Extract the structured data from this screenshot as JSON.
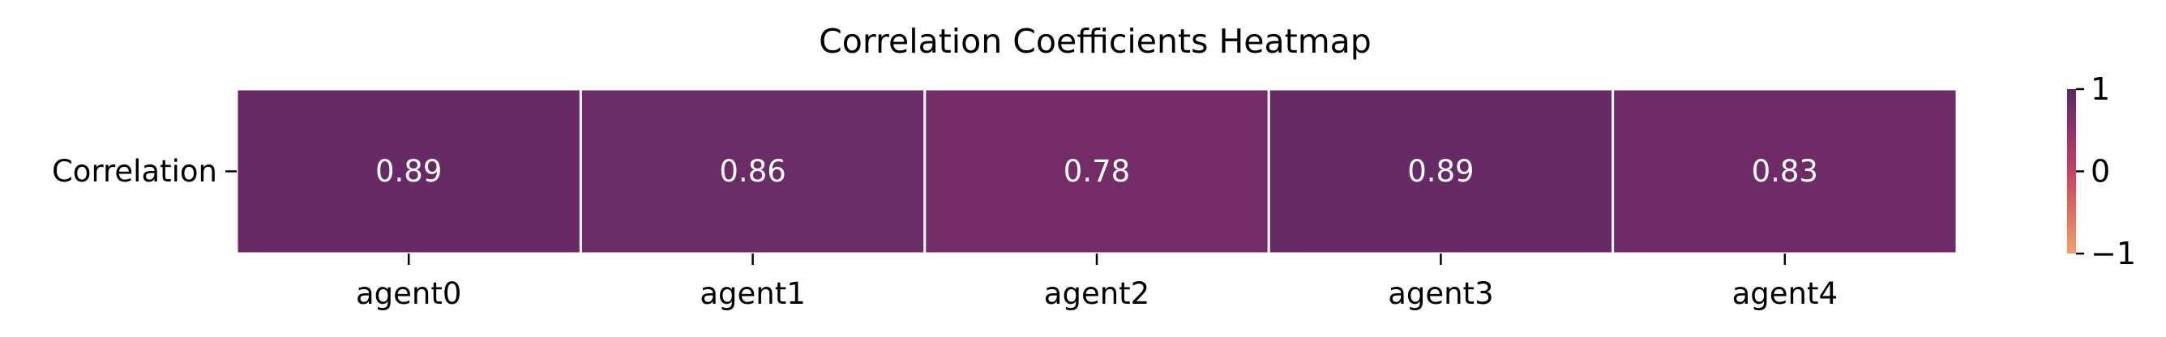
{
  "chart_data": {
    "type": "heatmap",
    "title": "Correlation Coefficients Heatmap",
    "row_labels": [
      "Correlation"
    ],
    "column_labels": [
      "agent0",
      "agent1",
      "agent2",
      "agent3",
      "agent4"
    ],
    "values": [
      [
        0.89,
        0.86,
        0.78,
        0.89,
        0.83
      ]
    ],
    "value_labels": [
      [
        "0.89",
        "0.86",
        "0.78",
        "0.89",
        "0.83"
      ]
    ],
    "colorbar": {
      "range": [
        -1,
        1
      ],
      "ticks": [
        1,
        0,
        -1
      ],
      "tick_labels": [
        "1",
        "0",
        "−1"
      ],
      "colormap": [
        "#f1a16c",
        "#e26f5a",
        "#c7415e",
        "#94316a",
        "#5a2865"
      ]
    },
    "xlabel": "",
    "ylabel": "",
    "grid": false,
    "cell_border_color": "#ffffff"
  }
}
